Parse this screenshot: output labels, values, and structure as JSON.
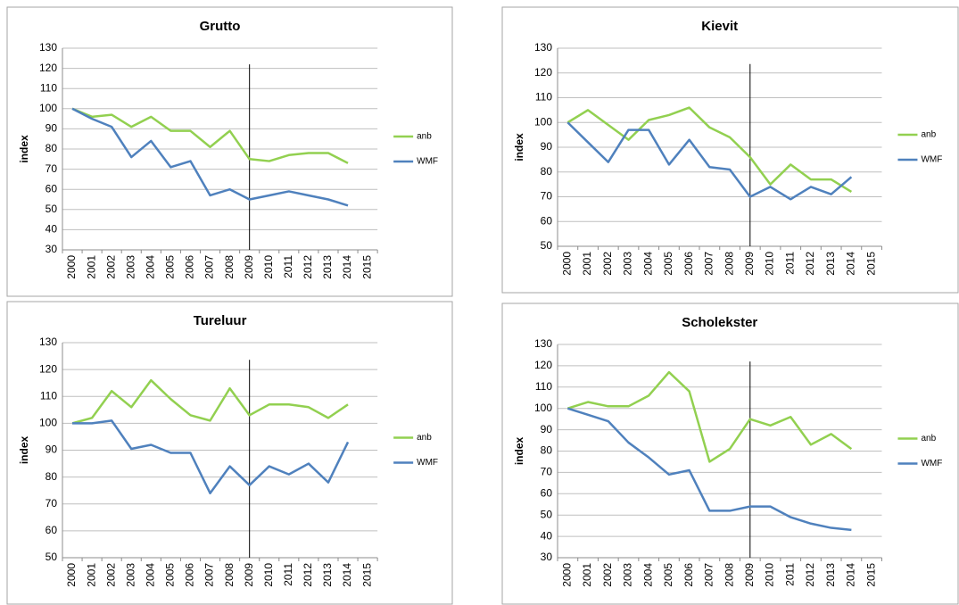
{
  "chart_data": [
    {
      "type": "line",
      "title": "Grutto",
      "y_label": "index",
      "categories": [
        "2000",
        "2001",
        "2002",
        "2003",
        "2004",
        "2005",
        "2006",
        "2007",
        "2008",
        "2009",
        "2010",
        "2011",
        "2012",
        "2013",
        "2014",
        "2015"
      ],
      "series": [
        {
          "name": "anb",
          "color": "#92d050",
          "values": [
            100,
            96,
            97,
            91,
            96,
            89,
            89,
            81,
            89,
            75,
            74,
            77,
            78,
            78,
            73,
            null
          ]
        },
        {
          "name": "WMF",
          "color": "#4f81bd",
          "values": [
            100,
            95,
            91,
            76,
            84,
            71,
            74,
            57,
            60,
            55,
            57,
            59,
            57,
            55,
            52,
            null
          ]
        }
      ],
      "ylim": [
        30,
        130
      ],
      "yticks": [
        30,
        40,
        50,
        60,
        70,
        80,
        90,
        100,
        110,
        120,
        130
      ],
      "grid": true,
      "legend": "right",
      "marker_line": "2009"
    },
    {
      "type": "line",
      "title": "Kievit",
      "y_label": "index",
      "categories": [
        "2000",
        "2001",
        "2002",
        "2003",
        "2004",
        "2005",
        "2006",
        "2007",
        "2008",
        "2009",
        "2010",
        "2011",
        "2012",
        "2013",
        "2014",
        "2015"
      ],
      "series": [
        {
          "name": "anb",
          "color": "#92d050",
          "values": [
            100,
            105,
            99,
            93,
            101,
            103,
            106,
            98,
            94,
            86,
            75,
            83,
            77,
            77,
            72,
            null
          ]
        },
        {
          "name": "WMF",
          "color": "#4f81bd",
          "values": [
            100,
            92,
            84,
            97,
            97,
            83,
            93,
            82,
            81,
            70,
            74,
            69,
            74,
            71,
            78,
            null
          ]
        }
      ],
      "ylim": [
        50,
        130
      ],
      "yticks": [
        50,
        60,
        70,
        80,
        90,
        100,
        110,
        120,
        130
      ],
      "grid": true,
      "legend": "right",
      "marker_line": "2009"
    },
    {
      "type": "line",
      "title": "Tureluur",
      "y_label": "index",
      "categories": [
        "2000",
        "2001",
        "2002",
        "2003",
        "2004",
        "2005",
        "2006",
        "2007",
        "2008",
        "2009",
        "2010",
        "2011",
        "2012",
        "2013",
        "2014",
        "2015"
      ],
      "series": [
        {
          "name": "anb",
          "color": "#92d050",
          "values": [
            100,
            102,
            112,
            106,
            116,
            109,
            103,
            101,
            113,
            103,
            107,
            107,
            106,
            102,
            107,
            null
          ]
        },
        {
          "name": "WMF",
          "color": "#4f81bd",
          "values": [
            100,
            100,
            101,
            90.5,
            92,
            89,
            89,
            74,
            84,
            77,
            84,
            81,
            85,
            78,
            93,
            null
          ]
        }
      ],
      "ylim": [
        50,
        130
      ],
      "yticks": [
        50,
        60,
        70,
        80,
        90,
        100,
        110,
        120,
        130
      ],
      "grid": true,
      "legend": "right",
      "marker_line": "2009"
    },
    {
      "type": "line",
      "title": "Scholekster",
      "y_label": "index",
      "categories": [
        "2000",
        "2001",
        "2002",
        "2003",
        "2004",
        "2005",
        "2006",
        "2007",
        "2008",
        "2009",
        "2010",
        "2011",
        "2012",
        "2013",
        "2014",
        "2015"
      ],
      "series": [
        {
          "name": "anb",
          "color": "#92d050",
          "values": [
            100,
            103,
            101,
            101,
            106,
            117,
            108,
            75,
            81,
            95,
            92,
            96,
            83,
            88,
            81,
            null
          ]
        },
        {
          "name": "WMF",
          "color": "#4f81bd",
          "values": [
            100,
            97,
            94,
            84,
            77,
            69,
            71,
            52,
            52,
            54,
            54,
            49,
            46,
            44,
            43,
            null
          ]
        }
      ],
      "ylim": [
        30,
        130
      ],
      "yticks": [
        30,
        40,
        50,
        60,
        70,
        80,
        90,
        100,
        110,
        120,
        130
      ],
      "grid": true,
      "legend": "right",
      "marker_line": "2009"
    }
  ]
}
